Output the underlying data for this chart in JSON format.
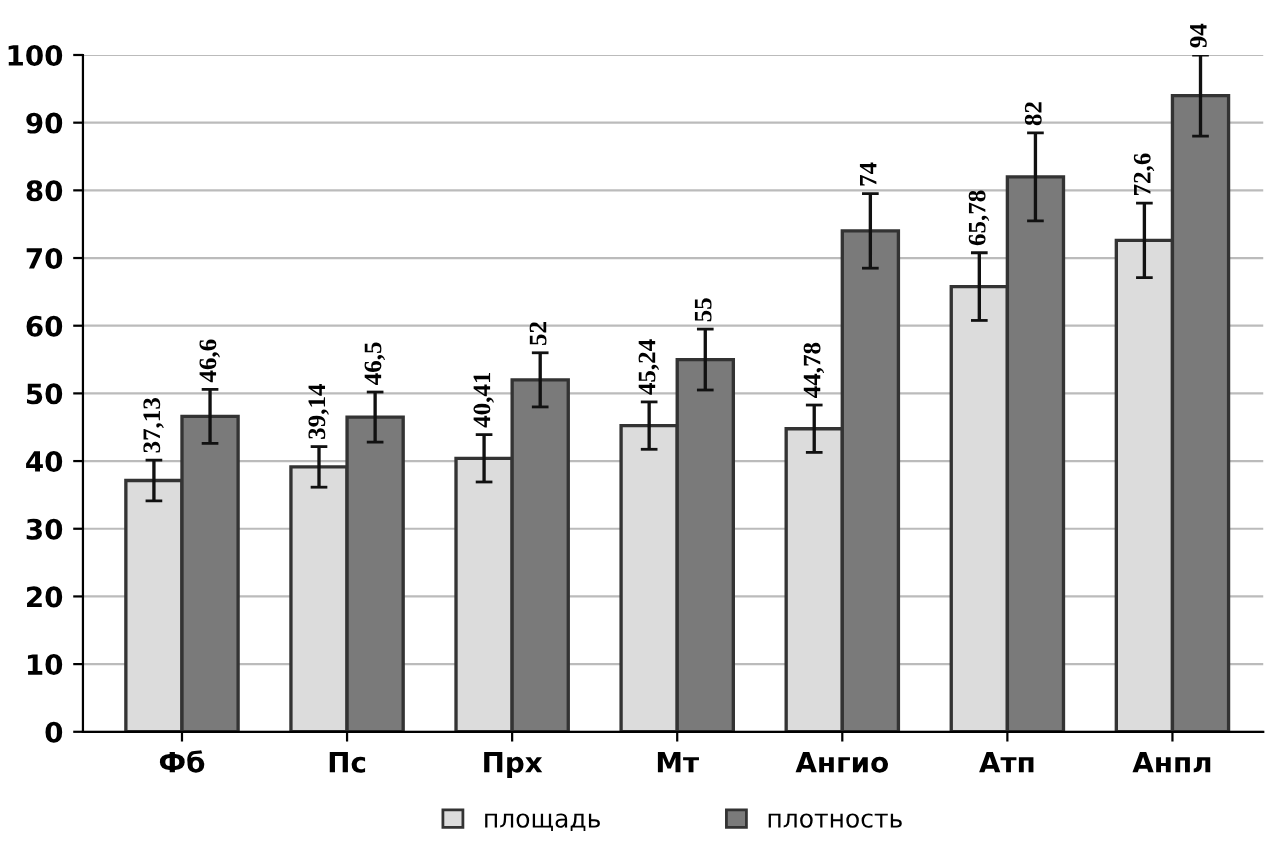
{
  "chart_data": {
    "type": "bar",
    "categories": [
      "Фб",
      "Пс",
      "Прх",
      "Мт",
      "Ангио",
      "Атп",
      "Анпл"
    ],
    "series": [
      {
        "name": "площадь",
        "color": "#dcdcdc",
        "values": [
          37.13,
          39.14,
          40.41,
          45.24,
          44.78,
          65.78,
          72.6
        ],
        "errors": [
          3,
          3,
          3.5,
          3.5,
          3.5,
          5,
          5.5
        ],
        "value_labels": [
          "37,13",
          "39,14",
          "40,41",
          "45,24",
          "44,78",
          "65,78",
          "72,6"
        ]
      },
      {
        "name": "плотность",
        "color": "#7a7a7a",
        "values": [
          46.6,
          46.5,
          52,
          55,
          74,
          82,
          94
        ],
        "errors": [
          4,
          3.7,
          4,
          4.5,
          5.5,
          6.5,
          6
        ],
        "value_labels": [
          "46,6",
          "46,5",
          "52",
          "55",
          "74",
          "82",
          "94"
        ]
      }
    ],
    "ylim": [
      0,
      100
    ],
    "yticks": [
      0,
      10,
      20,
      30,
      40,
      50,
      60,
      70,
      80,
      90,
      100
    ],
    "grid": "y",
    "legend": "bottom"
  }
}
